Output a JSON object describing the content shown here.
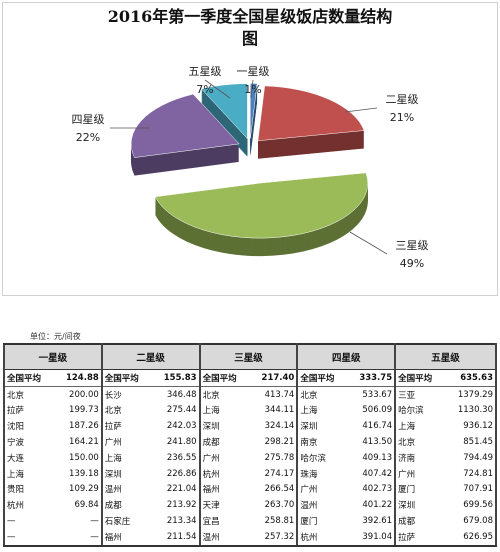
{
  "chart_data": {
    "type": "pie",
    "title": "2016年第一季度全国星级饭店数量结构图",
    "categories": [
      "一星级",
      "二星级",
      "三星级",
      "四星级",
      "五星级"
    ],
    "values": [
      1,
      21,
      49,
      22,
      7
    ],
    "value_labels": [
      "1%",
      "21%",
      "49%",
      "22%",
      "7%"
    ],
    "colors": [
      "#4f81bd",
      "#c0504d",
      "#9bbb59",
      "#8064a2",
      "#4bacc6"
    ]
  },
  "table": {
    "unit": "单位：元/间夜",
    "columns": [
      {
        "header": "一星级",
        "rows": [
          [
            "全国平均",
            "124.88"
          ],
          [
            "北京",
            "200.00"
          ],
          [
            "拉萨",
            "199.73"
          ],
          [
            "沈阳",
            "187.26"
          ],
          [
            "宁波",
            "164.21"
          ],
          [
            "大连",
            "150.00"
          ],
          [
            "上海",
            "139.18"
          ],
          [
            "贵阳",
            "109.29"
          ],
          [
            "杭州",
            "69.84"
          ],
          [
            "—",
            "—"
          ],
          [
            "—",
            "—"
          ]
        ]
      },
      {
        "header": "二星级",
        "rows": [
          [
            "全国平均",
            "155.83"
          ],
          [
            "长沙",
            "346.48"
          ],
          [
            "北京",
            "275.44"
          ],
          [
            "拉萨",
            "242.03"
          ],
          [
            "广州",
            "241.80"
          ],
          [
            "上海",
            "236.55"
          ],
          [
            "深圳",
            "226.86"
          ],
          [
            "温州",
            "221.04"
          ],
          [
            "成都",
            "213.92"
          ],
          [
            "石家庄",
            "213.34"
          ],
          [
            "福州",
            "211.54"
          ]
        ]
      },
      {
        "header": "三星级",
        "rows": [
          [
            "全国平均",
            "217.40"
          ],
          [
            "北京",
            "413.74"
          ],
          [
            "上海",
            "344.11"
          ],
          [
            "深圳",
            "324.14"
          ],
          [
            "成都",
            "298.21"
          ],
          [
            "广州",
            "275.78"
          ],
          [
            "杭州",
            "274.17"
          ],
          [
            "福州",
            "266.54"
          ],
          [
            "天津",
            "263.70"
          ],
          [
            "宜昌",
            "258.81"
          ],
          [
            "温州",
            "257.32"
          ]
        ]
      },
      {
        "header": "四星级",
        "rows": [
          [
            "全国平均",
            "333.75"
          ],
          [
            "北京",
            "533.67"
          ],
          [
            "上海",
            "506.09"
          ],
          [
            "深圳",
            "416.74"
          ],
          [
            "南京",
            "413.50"
          ],
          [
            "哈尔滨",
            "409.13"
          ],
          [
            "珠海",
            "407.42"
          ],
          [
            "广州",
            "402.73"
          ],
          [
            "温州",
            "401.22"
          ],
          [
            "厦门",
            "392.61"
          ],
          [
            "杭州",
            "391.04"
          ]
        ]
      },
      {
        "header": "五星级",
        "rows": [
          [
            "全国平均",
            "635.63"
          ],
          [
            "三亚",
            "1379.29"
          ],
          [
            "哈尔滨",
            "1130.30"
          ],
          [
            "上海",
            "936.12"
          ],
          [
            "北京",
            "851.45"
          ],
          [
            "济南",
            "794.49"
          ],
          [
            "广州",
            "724.81"
          ],
          [
            "厦门",
            "707.91"
          ],
          [
            "深圳",
            "699.56"
          ],
          [
            "成都",
            "679.08"
          ],
          [
            "拉萨",
            "626.95"
          ]
        ]
      }
    ]
  }
}
